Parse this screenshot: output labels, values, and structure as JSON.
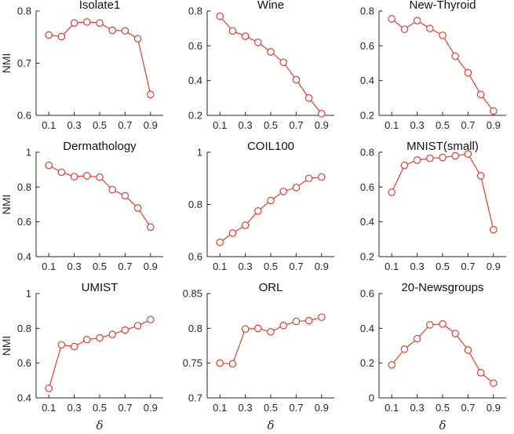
{
  "figure": {
    "ylabel": "NMI",
    "xlabel": "δ",
    "line_color": "#ee3b2e",
    "marker_fill": "#ffffff",
    "axis_color": "#262626",
    "tick_label_color": "#262626",
    "title_color": "#111111",
    "background_color": "#ffffff",
    "marker": "open-circle",
    "grid": "off",
    "legend": "none",
    "xlim": [
      0,
      1
    ],
    "x_ticks": [
      0.1,
      0.3,
      0.5,
      0.7,
      0.9
    ],
    "x_tick_labels": [
      "0.1",
      "0.3",
      "0.5",
      "0.7",
      "0.9"
    ]
  },
  "chart_data": [
    {
      "type": "line",
      "title": "Isolate1",
      "ylabel": "NMI",
      "xlabel": "",
      "x": [
        0.1,
        0.2,
        0.3,
        0.4,
        0.5,
        0.6,
        0.7,
        0.8,
        0.9
      ],
      "values": [
        0.754,
        0.751,
        0.777,
        0.779,
        0.777,
        0.763,
        0.762,
        0.747,
        0.64
      ],
      "ylim": [
        0.6,
        0.8
      ],
      "yticks": [
        0.6,
        0.7,
        0.8
      ],
      "ytick_labels": [
        "0.6",
        "0.7",
        "0.8"
      ]
    },
    {
      "type": "line",
      "title": "Wine",
      "ylabel": "",
      "xlabel": "",
      "x": [
        0.1,
        0.2,
        0.3,
        0.4,
        0.5,
        0.6,
        0.7,
        0.8,
        0.9
      ],
      "values": [
        0.77,
        0.685,
        0.655,
        0.62,
        0.565,
        0.505,
        0.405,
        0.3,
        0.21
      ],
      "ylim": [
        0.2,
        0.8
      ],
      "yticks": [
        0.2,
        0.4,
        0.6,
        0.8
      ],
      "ytick_labels": [
        "0.2",
        "0.4",
        "0.6",
        "0.8"
      ]
    },
    {
      "type": "line",
      "title": "New-Thyroid",
      "ylabel": "",
      "xlabel": "",
      "x": [
        0.1,
        0.2,
        0.3,
        0.4,
        0.5,
        0.6,
        0.7,
        0.8,
        0.9
      ],
      "values": [
        0.755,
        0.695,
        0.745,
        0.7,
        0.66,
        0.54,
        0.445,
        0.32,
        0.225
      ],
      "ylim": [
        0.2,
        0.8
      ],
      "yticks": [
        0.2,
        0.4,
        0.6,
        0.8
      ],
      "ytick_labels": [
        "0.2",
        "0.4",
        "0.6",
        "0.8"
      ]
    },
    {
      "type": "line",
      "title": "Dermathology",
      "ylabel": "NMI",
      "xlabel": "",
      "x": [
        0.1,
        0.2,
        0.3,
        0.4,
        0.5,
        0.6,
        0.7,
        0.8,
        0.9
      ],
      "values": [
        0.925,
        0.885,
        0.86,
        0.865,
        0.857,
        0.785,
        0.75,
        0.68,
        0.57
      ],
      "ylim": [
        0.4,
        1.0
      ],
      "yticks": [
        0.4,
        0.6,
        0.8,
        1.0
      ],
      "ytick_labels": [
        "0.4",
        "0.6",
        "0.8",
        "1"
      ]
    },
    {
      "type": "line",
      "title": "COIL100",
      "ylabel": "",
      "xlabel": "",
      "x": [
        0.1,
        0.2,
        0.3,
        0.4,
        0.5,
        0.6,
        0.7,
        0.8,
        0.9
      ],
      "values": [
        0.655,
        0.69,
        0.72,
        0.775,
        0.815,
        0.85,
        0.865,
        0.9,
        0.905
      ],
      "ylim": [
        0.6,
        1.0
      ],
      "yticks": [
        0.6,
        0.8,
        1.0
      ],
      "ytick_labels": [
        "0.6",
        "0.8",
        "1"
      ]
    },
    {
      "type": "line",
      "title": "MNIST(small)",
      "ylabel": "",
      "xlabel": "",
      "x": [
        0.1,
        0.2,
        0.3,
        0.4,
        0.5,
        0.6,
        0.7,
        0.8,
        0.9
      ],
      "values": [
        0.57,
        0.725,
        0.755,
        0.765,
        0.77,
        0.78,
        0.79,
        0.665,
        0.355
      ],
      "ylim": [
        0.2,
        0.8
      ],
      "yticks": [
        0.2,
        0.4,
        0.6,
        0.8
      ],
      "ytick_labels": [
        "0.2",
        "0.4",
        "0.6",
        "0.8"
      ]
    },
    {
      "type": "line",
      "title": "UMIST",
      "ylabel": "NMI",
      "xlabel": "δ",
      "x": [
        0.1,
        0.2,
        0.3,
        0.4,
        0.5,
        0.6,
        0.7,
        0.8,
        0.9
      ],
      "values": [
        0.455,
        0.705,
        0.695,
        0.735,
        0.745,
        0.765,
        0.79,
        0.815,
        0.85
      ],
      "ylim": [
        0.4,
        1.0
      ],
      "yticks": [
        0.4,
        0.6,
        0.8,
        1.0
      ],
      "ytick_labels": [
        "0.4",
        "0.6",
        "0.8",
        "1"
      ]
    },
    {
      "type": "line",
      "title": "ORL",
      "ylabel": "",
      "xlabel": "δ",
      "x": [
        0.1,
        0.2,
        0.3,
        0.4,
        0.5,
        0.6,
        0.7,
        0.8,
        0.9
      ],
      "values": [
        0.75,
        0.749,
        0.799,
        0.8,
        0.795,
        0.804,
        0.81,
        0.811,
        0.816
      ],
      "ylim": [
        0.7,
        0.85
      ],
      "yticks": [
        0.7,
        0.75,
        0.8,
        0.85
      ],
      "ytick_labels": [
        "0.7",
        "0.75",
        "0.8",
        "0.85"
      ]
    },
    {
      "type": "line",
      "title": "20-Newsgroups",
      "ylabel": "",
      "xlabel": "δ",
      "x": [
        0.1,
        0.2,
        0.3,
        0.4,
        0.5,
        0.6,
        0.7,
        0.8,
        0.9
      ],
      "values": [
        0.19,
        0.28,
        0.34,
        0.42,
        0.425,
        0.37,
        0.275,
        0.145,
        0.085
      ],
      "ylim": [
        0.0,
        0.6
      ],
      "yticks": [
        0.0,
        0.2,
        0.4,
        0.6
      ],
      "ytick_labels": [
        "0",
        "0.2",
        "0.4",
        "0.6"
      ]
    }
  ]
}
